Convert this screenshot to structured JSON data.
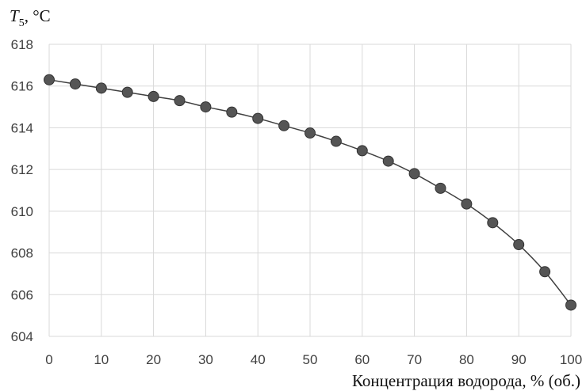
{
  "chart_data": {
    "type": "line",
    "ylabel_symbol": "T",
    "ylabel_subscript": "5",
    "ylabel_unit": ", °C",
    "xlabel": "Концентрация водорода, % (об.)",
    "xlim": [
      0,
      100
    ],
    "ylim": [
      604,
      618
    ],
    "xticks": [
      0,
      10,
      20,
      30,
      40,
      50,
      60,
      70,
      80,
      90,
      100
    ],
    "yticks": [
      604,
      606,
      608,
      610,
      612,
      614,
      616,
      618
    ],
    "grid": true,
    "legend": false,
    "series": [
      {
        "x": [
          0,
          5,
          10,
          15,
          20,
          25,
          30,
          35,
          40,
          45,
          50,
          55,
          60,
          65,
          70,
          75,
          80,
          85,
          90,
          95,
          100
        ],
        "y": [
          616.3,
          616.1,
          615.9,
          615.7,
          615.5,
          615.3,
          615.0,
          614.75,
          614.45,
          614.1,
          613.75,
          613.35,
          612.9,
          612.4,
          611.8,
          611.1,
          610.35,
          609.45,
          608.4,
          607.1,
          605.5
        ]
      }
    ],
    "colors": {
      "line": "#404040",
      "marker": "#555555",
      "grid": "#d9d9d9"
    }
  }
}
